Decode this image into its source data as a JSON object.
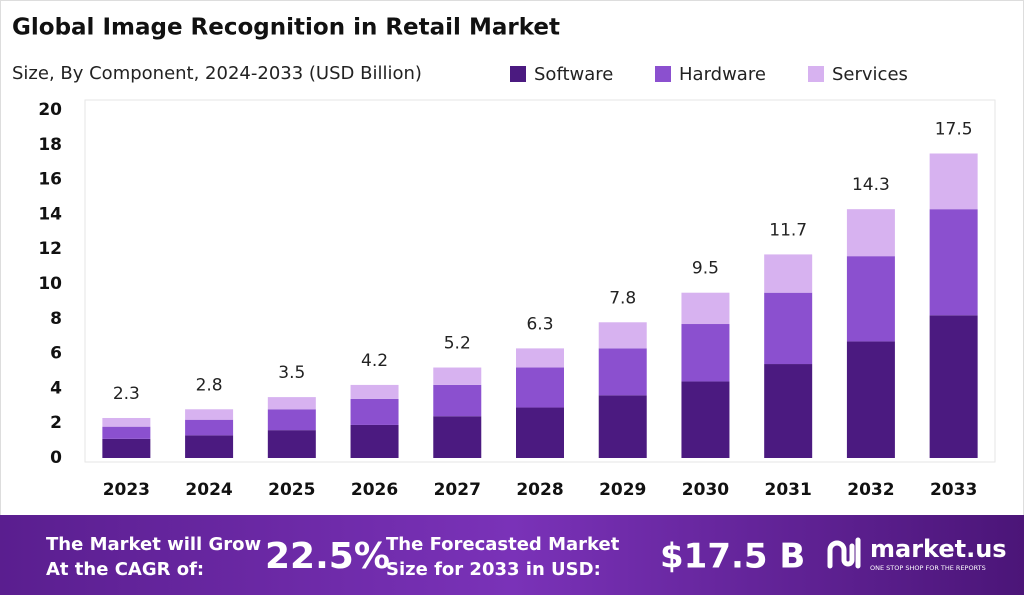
{
  "chart_data": {
    "type": "stacked_bar",
    "title": "Global Image Recognition in Retail Market",
    "subtitle": "Size, By Component, 2024-2033 (USD Billion)",
    "categories": [
      "2023",
      "2024",
      "2025",
      "2026",
      "2027",
      "2028",
      "2029",
      "2030",
      "2031",
      "2032",
      "2033"
    ],
    "series": [
      {
        "name": "Software",
        "color": "#4b1a80",
        "values": [
          1.1,
          1.3,
          1.6,
          1.9,
          2.4,
          2.9,
          3.6,
          4.4,
          5.4,
          6.7,
          8.2
        ]
      },
      {
        "name": "Hardware",
        "color": "#8b50cf",
        "values": [
          0.7,
          0.9,
          1.2,
          1.5,
          1.8,
          2.3,
          2.7,
          3.3,
          4.1,
          4.9,
          6.1
        ]
      },
      {
        "name": "Services",
        "color": "#d7b2f0",
        "values": [
          0.5,
          0.6,
          0.7,
          0.8,
          1.0,
          1.1,
          1.5,
          1.8,
          2.2,
          2.7,
          3.2
        ]
      }
    ],
    "totals": [
      2.3,
      2.8,
      3.5,
      4.2,
      5.2,
      6.3,
      7.8,
      9.5,
      11.7,
      14.3,
      17.5
    ],
    "ylim": [
      0,
      20
    ],
    "yticks": [
      0,
      2,
      4,
      6,
      8,
      10,
      12,
      14,
      16,
      18,
      20
    ],
    "grid": false
  },
  "footer": {
    "cagr_label": [
      "The Market will Grow",
      "At the CAGR of:"
    ],
    "cagr_value": "22.5%",
    "forecast_label": [
      "The Forecasted Market",
      "Size for 2033 in USD:"
    ],
    "forecast_value": "$17.5 B",
    "brand": "market.us",
    "tagline": "ONE STOP SHOP FOR THE REPORTS"
  }
}
